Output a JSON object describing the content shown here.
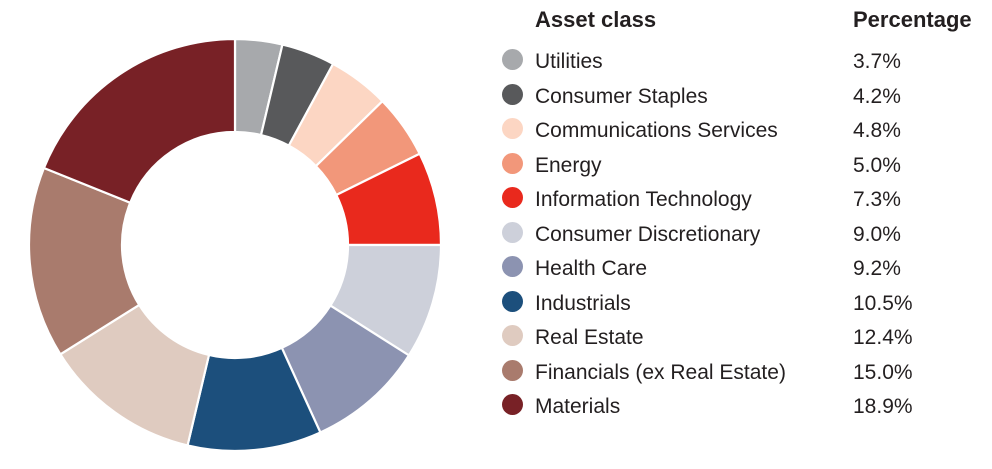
{
  "chart_data": {
    "type": "donut",
    "title": "",
    "start_at": "12-oclock",
    "direction": "clockwise",
    "inner_radius_ratio": 0.548,
    "legend_position": "right",
    "grid": false,
    "legend_headers": {
      "asset_class": "Asset class",
      "percentage": "Percentage"
    },
    "categories": [
      "Utilities",
      "Consumer Staples",
      "Communications Services",
      "Energy",
      "Information Technology",
      "Consumer Discretionary",
      "Health Care",
      "Industrials",
      "Real Estate",
      "Financials (ex Real Estate)",
      "Materials"
    ],
    "values": [
      3.7,
      4.2,
      4.8,
      5.0,
      7.3,
      9.0,
      9.2,
      10.5,
      12.4,
      15.0,
      18.9
    ],
    "percent_labels": [
      "3.7%",
      "4.2%",
      "4.8%",
      "5.0%",
      "7.3%",
      "9.0%",
      "9.2%",
      "10.5%",
      "12.4%",
      "15.0%",
      "18.9%"
    ],
    "colors": [
      "#a7a9ac",
      "#58595b",
      "#fcd6c3",
      "#f2977a",
      "#e9291d",
      "#cdd0da",
      "#8c93b1",
      "#1c4f7c",
      "#dfcbc0",
      "#a97b6d",
      "#782126"
    ],
    "text_color": "#231f20",
    "separator_color": "#ffffff",
    "background_color": "#ffffff"
  }
}
